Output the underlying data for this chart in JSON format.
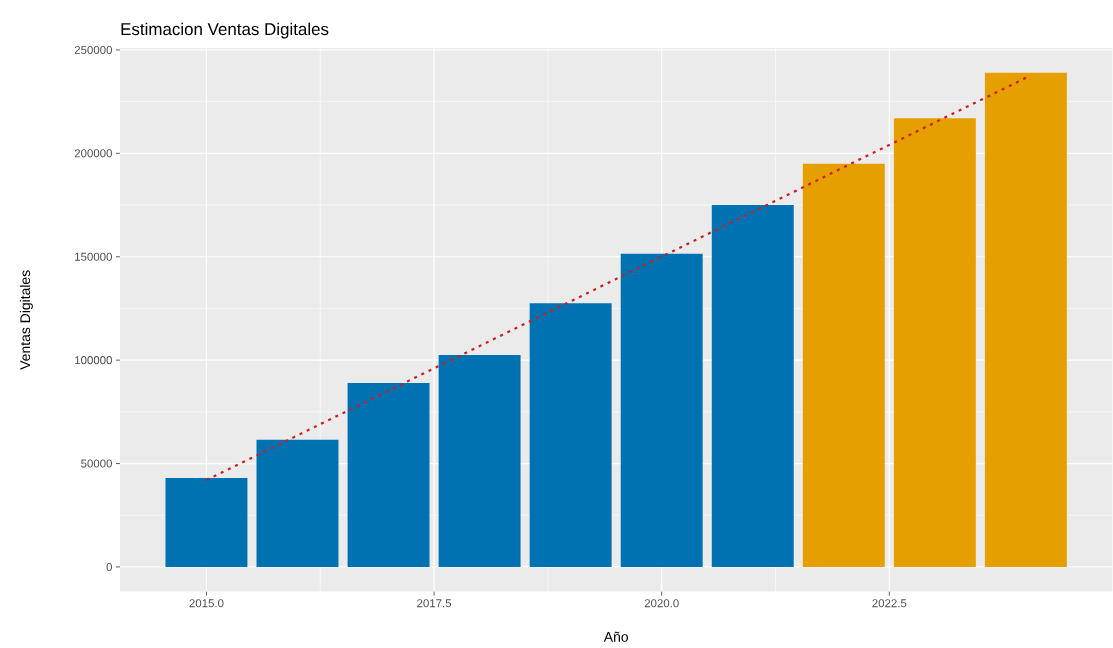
{
  "chart_data": {
    "type": "bar",
    "title": "Estimacion Ventas Digitales",
    "xlabel": "Año",
    "ylabel": "Ventas Digitales",
    "series": [
      {
        "x": [
          2015,
          2016,
          2017,
          2018,
          2019,
          2020,
          2021,
          2022,
          2023,
          2024
        ],
        "values": [
          43000,
          61500,
          89000,
          102500,
          127500,
          151500,
          175000,
          195000,
          217000,
          239000
        ],
        "colors": [
          "#0072b2",
          "#0072b2",
          "#0072b2",
          "#0072b2",
          "#0072b2",
          "#0072b2",
          "#0072b2",
          "#e69f00",
          "#e69f00",
          "#e69f00"
        ]
      },
      {
        "type": "line",
        "x": [
          2015,
          2024
        ],
        "values": [
          42000,
          236500
        ],
        "color": "#d01c1c",
        "line_style": "dotted"
      }
    ],
    "xlim": [
      2014.05,
      2024.95
    ],
    "ylim": [
      -11950,
      250950
    ],
    "xticks": [
      {
        "value": 2015,
        "label": "2015.0"
      },
      {
        "value": 2017.5,
        "label": "2017.5"
      },
      {
        "value": 2020,
        "label": "2020.0"
      },
      {
        "value": 2022.5,
        "label": "2022.5"
      }
    ],
    "yticks": [
      0,
      50000,
      100000,
      150000,
      200000,
      250000
    ],
    "grid": true
  }
}
